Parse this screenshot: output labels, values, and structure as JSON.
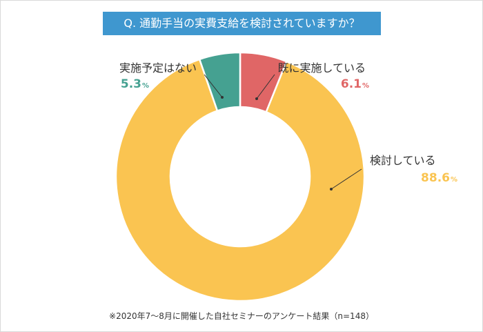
{
  "title": "Q. 通勤手当の実費支給を検討されていますか？",
  "footnote": "※2020年7～8月に開催した自社セミナーのアンケート結果（n=148）",
  "colors": {
    "title_bg": "#3f97cf",
    "already": "#e06666",
    "considering": "#fac451",
    "no_plan": "#45a191"
  },
  "chart_data": {
    "type": "pie",
    "donut": true,
    "unit": "%",
    "slices": [
      {
        "label": "既に実施している",
        "value": 6.1,
        "color": "#e06666"
      },
      {
        "label": "検討している",
        "value": 88.6,
        "color": "#fac451"
      },
      {
        "label": "実施予定はない",
        "value": 5.3,
        "color": "#45a191"
      }
    ]
  }
}
